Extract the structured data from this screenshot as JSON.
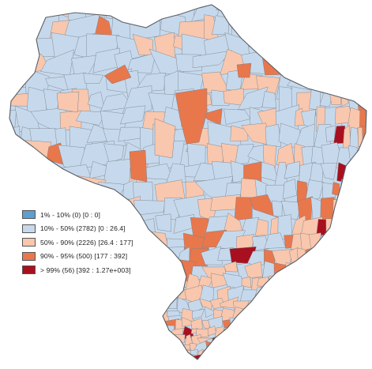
{
  "map": {
    "colors": {
      "outline": "#5b5f66",
      "border": "#7c828c",
      "background": "#ffffff"
    }
  },
  "legend": {
    "items": [
      {
        "label": "1% - 10% (0)  [0 : 0]",
        "color": "#5e9fcf"
      },
      {
        "label": "10% - 50% (2782)  [0 : 26.4]",
        "color": "#c6d9ec"
      },
      {
        "label": "50% - 90% (2226)  [26.4 : 177]",
        "color": "#f9c7ad"
      },
      {
        "label": "90% - 95% (500)  [177 : 392]",
        "color": "#e8774c"
      },
      {
        "label": "> 99% (56)  [392 : 1.27e+003]",
        "color": "#a8101f"
      }
    ]
  }
}
